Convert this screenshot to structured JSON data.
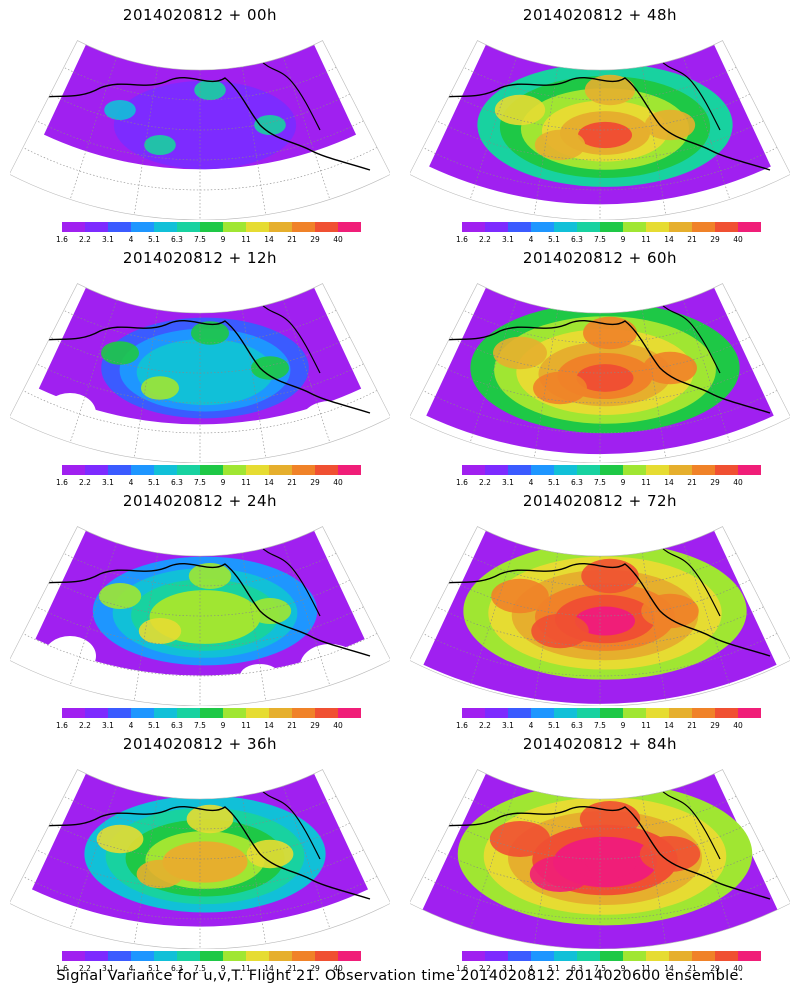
{
  "caption": "Signal Variance for u,v,T. Flight 21. Observation time 2014020812. 2014020600 ensemble.",
  "colorbar": {
    "labels": [
      "1.6",
      "2.2",
      "3.1",
      "4",
      "5.1",
      "6.3",
      "7.5",
      "9",
      "11",
      "14",
      "21",
      "29",
      "40"
    ],
    "colors": [
      "#a020f0",
      "#7d2bff",
      "#3b5bff",
      "#1e96ff",
      "#11c0d8",
      "#18d2a0",
      "#1ec846",
      "#a0e632",
      "#e6dc32",
      "#e6af2d",
      "#f08228",
      "#f05032",
      "#f01e78"
    ]
  },
  "panels": [
    {
      "title": "2014020812 + 00h",
      "lead_hours": 0,
      "spread_level": 0.1
    },
    {
      "title": "2014020812 + 48h",
      "lead_hours": 48,
      "spread_level": 0.62
    },
    {
      "title": "2014020812 + 12h",
      "lead_hours": 12,
      "spread_level": 0.28
    },
    {
      "title": "2014020812 + 60h",
      "lead_hours": 60,
      "spread_level": 0.72
    },
    {
      "title": "2014020812 + 24h",
      "lead_hours": 24,
      "spread_level": 0.4
    },
    {
      "title": "2014020812 + 72h",
      "lead_hours": 72,
      "spread_level": 0.82
    },
    {
      "title": "2014020812 + 36h",
      "lead_hours": 36,
      "spread_level": 0.52
    },
    {
      "title": "2014020812 + 84h",
      "lead_hours": 84,
      "spread_level": 0.9
    }
  ]
}
